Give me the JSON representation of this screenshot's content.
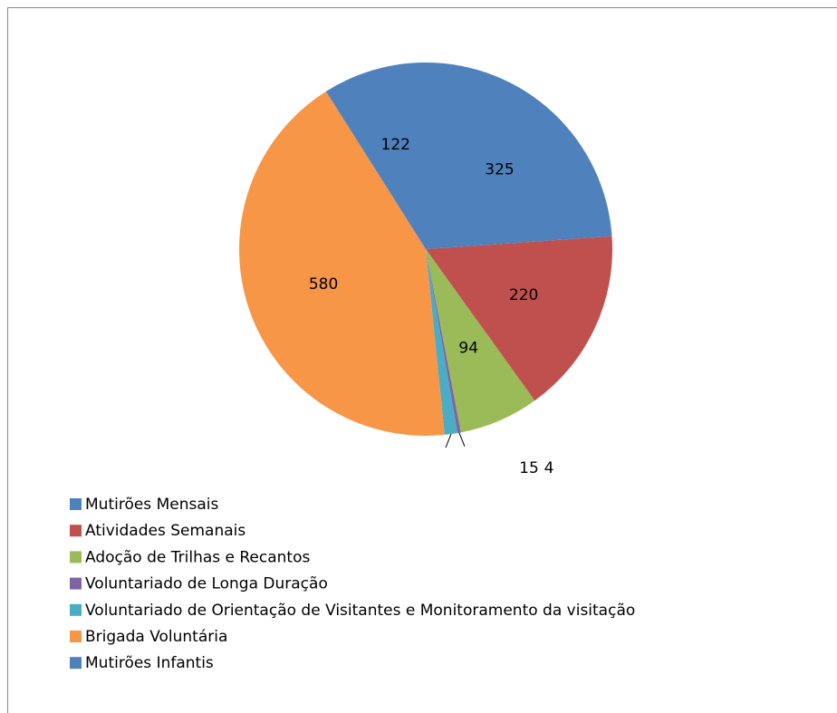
{
  "chart_data": {
    "type": "pie",
    "categories": [
      "Mutirões Mensais",
      "Atividades Semanais",
      "Adoção de Trilhas e Recantos",
      "Voluntariado de Longa Duração",
      "Voluntariado de Orientação de Visitantes e Monitoramento da visitação",
      "Brigada Voluntária",
      "Mutirões Infantis"
    ],
    "values": [
      325,
      220,
      94,
      4,
      15,
      580,
      122
    ],
    "colors": [
      "#4f81bd",
      "#c0504d",
      "#9bbb59",
      "#8064a2",
      "#4bacc6",
      "#f79646",
      "#4f81bd"
    ],
    "start_angle": 0,
    "direction": "clockwise",
    "legend": "bottom-left"
  }
}
